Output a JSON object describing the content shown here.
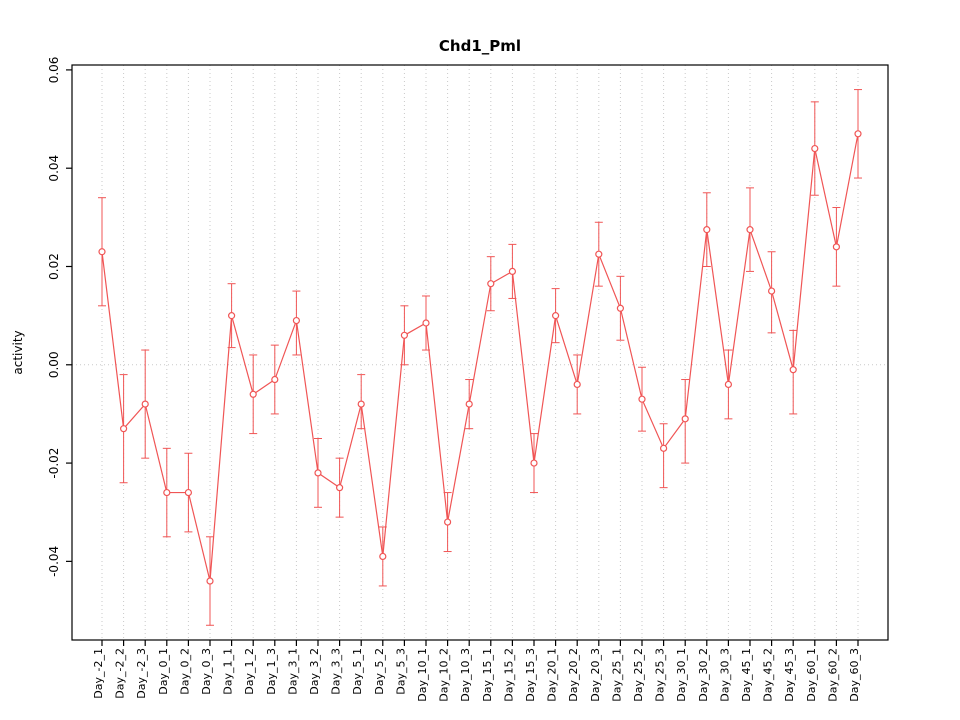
{
  "chart_data": {
    "type": "line",
    "title": "Chd1_Pml",
    "xlabel": "",
    "ylabel": "activity",
    "ylim": [
      -0.056,
      0.061
    ],
    "yticks": [
      -0.04,
      -0.02,
      0.0,
      0.02,
      0.04,
      0.06
    ],
    "grid": "vertical-dotted-per-category, dotted zero line",
    "legend": "none",
    "marker": "open-circle",
    "categories": [
      "Day_-2_1",
      "Day_-2_2",
      "Day_-2_3",
      "Day_0_1",
      "Day_0_2",
      "Day_0_3",
      "Day_1_1",
      "Day_1_2",
      "Day_1_3",
      "Day_3_1",
      "Day_3_2",
      "Day_3_3",
      "Day_5_1",
      "Day_5_2",
      "Day_5_3",
      "Day_10_1",
      "Day_10_2",
      "Day_10_3",
      "Day_15_1",
      "Day_15_2",
      "Day_15_3",
      "Day_20_1",
      "Day_20_2",
      "Day_20_3",
      "Day_25_1",
      "Day_25_2",
      "Day_25_3",
      "Day_30_1",
      "Day_30_2",
      "Day_30_3",
      "Day_45_1",
      "Day_45_2",
      "Day_45_3",
      "Day_60_1",
      "Day_60_2",
      "Day_60_3"
    ],
    "values": [
      0.023,
      -0.013,
      -0.008,
      -0.026,
      -0.026,
      -0.044,
      0.01,
      -0.006,
      -0.003,
      0.009,
      -0.022,
      -0.025,
      -0.008,
      -0.039,
      0.006,
      0.0085,
      -0.032,
      -0.008,
      0.0165,
      0.019,
      -0.02,
      0.01,
      -0.004,
      0.0225,
      0.0115,
      -0.007,
      -0.017,
      -0.011,
      0.0275,
      -0.004,
      0.0275,
      0.015,
      -0.001,
      0.044,
      0.024,
      0.047
    ],
    "error_upper": [
      0.034,
      -0.002,
      0.003,
      -0.017,
      -0.018,
      -0.035,
      0.0165,
      0.002,
      0.004,
      0.015,
      -0.015,
      -0.019,
      -0.002,
      -0.033,
      0.012,
      0.014,
      -0.026,
      -0.003,
      0.022,
      0.0245,
      -0.014,
      0.0155,
      0.002,
      0.029,
      0.018,
      -0.0005,
      -0.012,
      -0.003,
      0.035,
      0.003,
      0.036,
      0.023,
      0.007,
      0.0535,
      0.032,
      0.056
    ],
    "error_lower": [
      0.012,
      -0.024,
      -0.019,
      -0.035,
      -0.034,
      -0.053,
      0.0035,
      -0.014,
      -0.01,
      0.002,
      -0.029,
      -0.031,
      -0.013,
      -0.045,
      0.0,
      0.003,
      -0.038,
      -0.013,
      0.011,
      0.0135,
      -0.026,
      0.0045,
      -0.01,
      0.016,
      0.005,
      -0.0135,
      -0.025,
      -0.02,
      0.02,
      -0.011,
      0.019,
      0.0065,
      -0.01,
      0.0345,
      0.016,
      0.038
    ],
    "colors": {
      "series": "#f05555",
      "grid": "#c9c9c9",
      "axis": "#000000",
      "background": "#ffffff"
    }
  }
}
